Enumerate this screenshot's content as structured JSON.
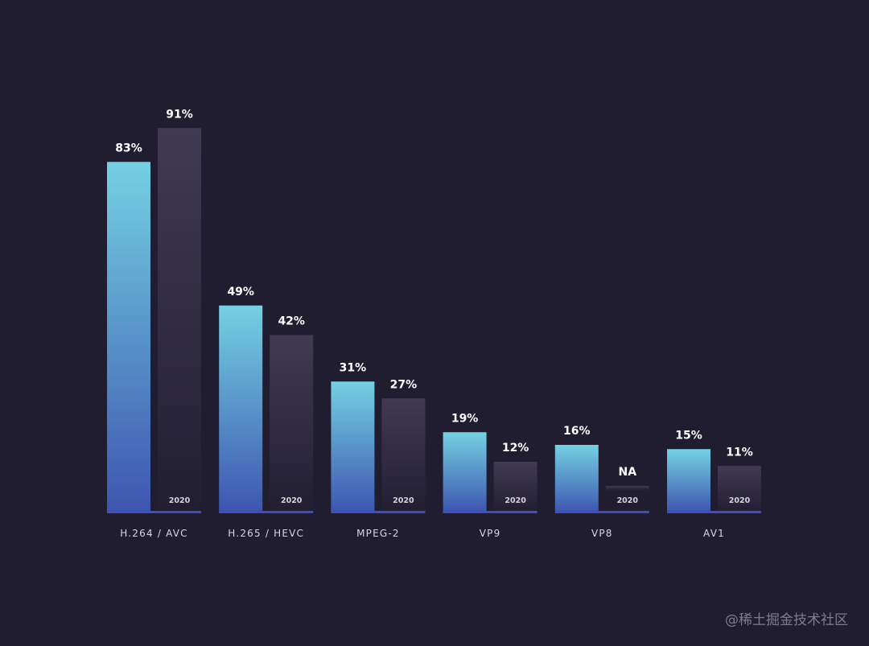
{
  "chart_data": {
    "type": "bar",
    "categories": [
      "H.264 / AVC",
      "H.265 / HEVC",
      "MPEG-2",
      "VP9",
      "VP8",
      "AV1"
    ],
    "ylim": [
      0,
      100
    ],
    "grid": false,
    "series": [
      {
        "values": [
          83,
          49,
          31,
          19,
          16,
          15
        ],
        "labels": [
          "83%",
          "49%",
          "31%",
          "19%",
          "16%",
          "15%"
        ],
        "color_top": "#74d1e2",
        "color_bottom": "#3d55b0"
      },
      {
        "name": "2020",
        "values": [
          91,
          42,
          27,
          12,
          null,
          11
        ],
        "labels": [
          "91%",
          "42%",
          "27%",
          "12%",
          "NA",
          "11%"
        ],
        "color_top": "#403a52",
        "color_bottom": "#221e32"
      }
    ],
    "baseline_color": "#3f4fc2"
  },
  "watermark": "@稀土掘金技术社区"
}
